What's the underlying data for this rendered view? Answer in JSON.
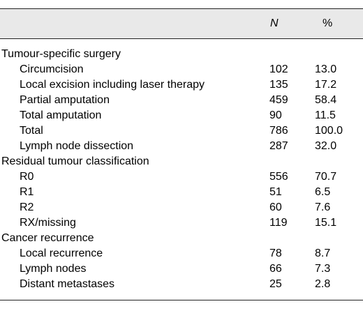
{
  "table": {
    "header": {
      "col_label": "",
      "col_n": "N",
      "col_pct": "%"
    },
    "rows": [
      {
        "label": "Tumour-specific surgery",
        "n": "",
        "pct": "",
        "indent": false
      },
      {
        "label": "Circumcision",
        "n": "102",
        "pct": "13.0",
        "indent": true
      },
      {
        "label": "Local excision including laser therapy",
        "n": "135",
        "pct": "17.2",
        "indent": true
      },
      {
        "label": "Partial amputation",
        "n": "459",
        "pct": "58.4",
        "indent": true
      },
      {
        "label": "Total amputation",
        "n": "90",
        "pct": "11.5",
        "indent": true
      },
      {
        "label": "Total",
        "n": "786",
        "pct": "100.0",
        "indent": true
      },
      {
        "label": "Lymph node dissection",
        "n": "287",
        "pct": "32.0",
        "indent": true
      },
      {
        "label": "Residual tumour classification",
        "n": "",
        "pct": "",
        "indent": false
      },
      {
        "label": "R0",
        "n": "556",
        "pct": "70.7",
        "indent": true
      },
      {
        "label": "R1",
        "n": "51",
        "pct": "6.5",
        "indent": true
      },
      {
        "label": "R2",
        "n": "60",
        "pct": "7.6",
        "indent": true
      },
      {
        "label": "RX/missing",
        "n": "119",
        "pct": "15.1",
        "indent": true
      },
      {
        "label": "Cancer recurrence",
        "n": "",
        "pct": "",
        "indent": false
      },
      {
        "label": "Local recurrence",
        "n": "78",
        "pct": "8.7",
        "indent": true
      },
      {
        "label": "Lymph nodes",
        "n": "66",
        "pct": "7.3",
        "indent": true
      },
      {
        "label": "Distant metastases",
        "n": "25",
        "pct": "2.8",
        "indent": true
      }
    ]
  }
}
